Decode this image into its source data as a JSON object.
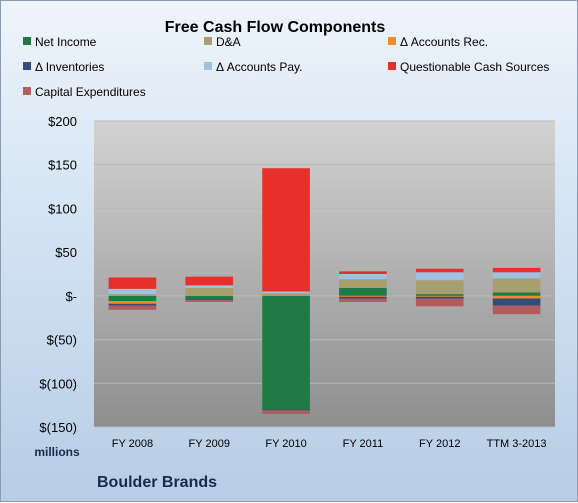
{
  "chart_data": {
    "type": "bar",
    "stacked": true,
    "title": "Free Cash Flow Components",
    "ylabel": "millions",
    "footer": "Boulder Brands",
    "categories": [
      "FY 2008",
      "FY 2009",
      "FY 2010",
      "FY 2011",
      "FY 2012",
      "TTM 3-2013"
    ],
    "ylim": [
      -150,
      200
    ],
    "yticks": [
      200,
      150,
      100,
      50,
      0,
      -50,
      -100,
      -150
    ],
    "ytick_labels": [
      "$200",
      "$150",
      "$100",
      "$50",
      "$-",
      "$(50)",
      "$(100)",
      "$(150)"
    ],
    "legend_position": "top",
    "series": [
      {
        "name": "Net Income",
        "color": "#1f7a45",
        "values": [
          -6,
          -4,
          -130,
          9,
          2,
          4
        ]
      },
      {
        "name": "D&A",
        "color": "#a89f6e",
        "values": [
          2,
          9,
          3,
          10,
          16,
          16
        ]
      },
      {
        "name": "Δ Accounts Rec.",
        "color": "#f28c28",
        "values": [
          -3,
          0,
          0,
          -1,
          -1,
          -3
        ]
      },
      {
        "name": "Δ Inventories",
        "color": "#2f4e7c",
        "values": [
          -2,
          -1,
          -1,
          -2,
          -2,
          -8
        ]
      },
      {
        "name": "Δ Accounts Pay.",
        "color": "#9fbfe3",
        "values": [
          6,
          3,
          2,
          6,
          9,
          7
        ]
      },
      {
        "name": "Questionable Cash Sources",
        "color": "#e8302a",
        "values": [
          13,
          10,
          141,
          3,
          4,
          5
        ]
      },
      {
        "name": "Capital Expenditures",
        "color": "#b35c5f",
        "values": [
          -5,
          -2,
          -4,
          -4,
          -9,
          -10
        ]
      }
    ]
  },
  "colors": {
    "plot_top": "#d2d2d2",
    "plot_bottom": "#8e8e8e",
    "gridline": "#b8b8b8"
  }
}
